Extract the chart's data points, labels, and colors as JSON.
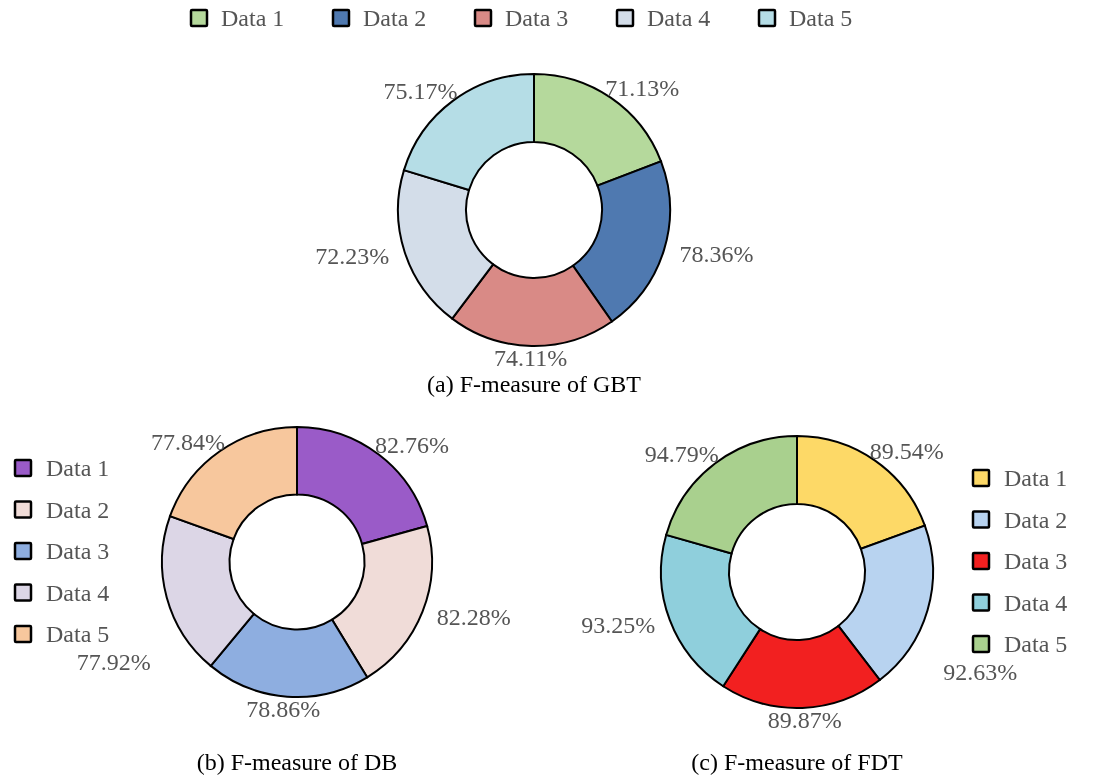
{
  "chart_data": [
    {
      "type": "donut",
      "title": "(a) F-measure of GBT",
      "legend": "top",
      "categories": [
        "Data 1",
        "Data 2",
        "Data 3",
        "Data 4",
        "Data 5"
      ],
      "values": [
        71.13,
        78.36,
        74.11,
        72.23,
        75.17
      ],
      "value_labels": [
        "71.13%",
        "78.36%",
        "74.11%",
        "72.23%",
        "75.17%"
      ],
      "colors": [
        "#b5d99c",
        "#4f79b0",
        "#d98a86",
        "#d3dde9",
        "#b5dde6"
      ]
    },
    {
      "type": "donut",
      "title": "(b) F-measure of DB",
      "legend": "left",
      "categories": [
        "Data 1",
        "Data 2",
        "Data 3",
        "Data 4",
        "Data 5"
      ],
      "values": [
        82.76,
        82.28,
        78.86,
        77.92,
        77.84
      ],
      "value_labels": [
        "82.76%",
        "82.28%",
        "78.86%",
        "77.92%",
        "77.84%"
      ],
      "colors": [
        "#9a5bc8",
        "#f0dcd8",
        "#8eaee0",
        "#dcd6e6",
        "#f7c79d"
      ]
    },
    {
      "type": "donut",
      "title": "(c) F-measure of FDT",
      "legend": "right",
      "categories": [
        "Data 1",
        "Data 2",
        "Data 3",
        "Data 4",
        "Data 5"
      ],
      "values": [
        89.54,
        92.63,
        89.87,
        93.25,
        94.79
      ],
      "value_labels": [
        "89.54%",
        "92.63%",
        "89.87%",
        "93.25%",
        "94.79%"
      ],
      "colors": [
        "#fdd967",
        "#b8d3f0",
        "#f22020",
        "#8fcfdc",
        "#a9d08e"
      ]
    }
  ]
}
